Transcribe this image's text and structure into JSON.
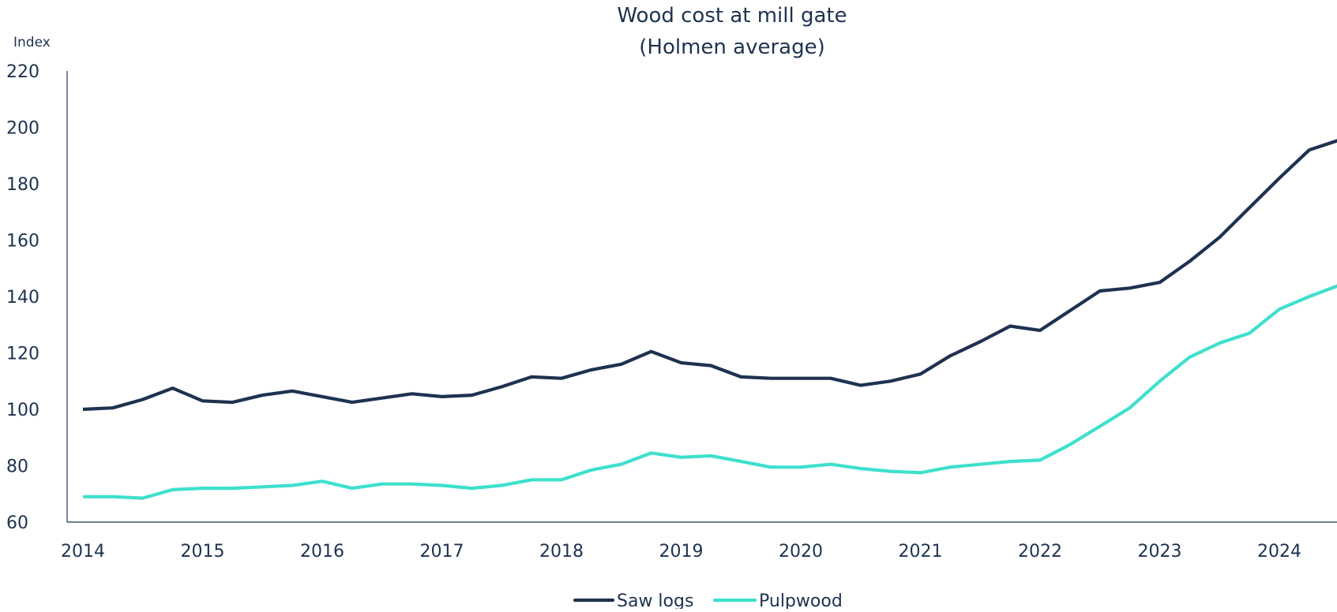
{
  "chart_data": {
    "type": "line",
    "title": "Wood cost at mill gate",
    "subtitle": "(Holmen average)",
    "ylabel": "Index",
    "xlabel": "",
    "ylim": [
      60,
      220
    ],
    "yticks": [
      60,
      80,
      100,
      120,
      140,
      160,
      180,
      200,
      220
    ],
    "xticks": [
      "2014",
      "2015",
      "2016",
      "2017",
      "2018",
      "2019",
      "2020",
      "2021",
      "2022",
      "2023",
      "2024"
    ],
    "x_range": [
      2014.0,
      2024.5
    ],
    "grid": false,
    "legend_position": "bottom",
    "x": [
      2014.0,
      2014.25,
      2014.5,
      2014.75,
      2015.0,
      2015.25,
      2015.5,
      2015.75,
      2016.0,
      2016.25,
      2016.5,
      2016.75,
      2017.0,
      2017.25,
      2017.5,
      2017.75,
      2018.0,
      2018.25,
      2018.5,
      2018.75,
      2019.0,
      2019.25,
      2019.5,
      2019.75,
      2020.0,
      2020.25,
      2020.5,
      2020.75,
      2021.0,
      2021.25,
      2021.5,
      2021.75,
      2022.0,
      2022.25,
      2022.5,
      2022.75,
      2023.0,
      2023.25,
      2023.5,
      2023.75,
      2024.0,
      2024.25,
      2024.5
    ],
    "series": [
      {
        "name": "Saw logs",
        "color": "#1e3250",
        "values": [
          100,
          100.5,
          103.5,
          107.5,
          103,
          102.5,
          105,
          106.5,
          104.5,
          102.5,
          104,
          105.5,
          104.5,
          105,
          108,
          111.5,
          111,
          114,
          116,
          120.5,
          116.5,
          115.5,
          111.5,
          111,
          111,
          111,
          108.5,
          110,
          112.5,
          119,
          124,
          129.5,
          128,
          135,
          142,
          143,
          145,
          152.5,
          161,
          171.5,
          182,
          192,
          195.5
        ]
      },
      {
        "name": "Pulpwood",
        "color": "#3ee0cd",
        "values": [
          69,
          69,
          68.5,
          71.5,
          72,
          72,
          72.5,
          73,
          74.5,
          72,
          73.5,
          73.5,
          73,
          72,
          73,
          75,
          75,
          78.5,
          80.5,
          84.5,
          83,
          83.5,
          81.5,
          79.5,
          79.5,
          80.5,
          79,
          78,
          77.5,
          79.5,
          80.5,
          81.5,
          82,
          87.5,
          94,
          100.5,
          110,
          118.5,
          123.5,
          127,
          135.5,
          140,
          144
        ]
      }
    ]
  }
}
